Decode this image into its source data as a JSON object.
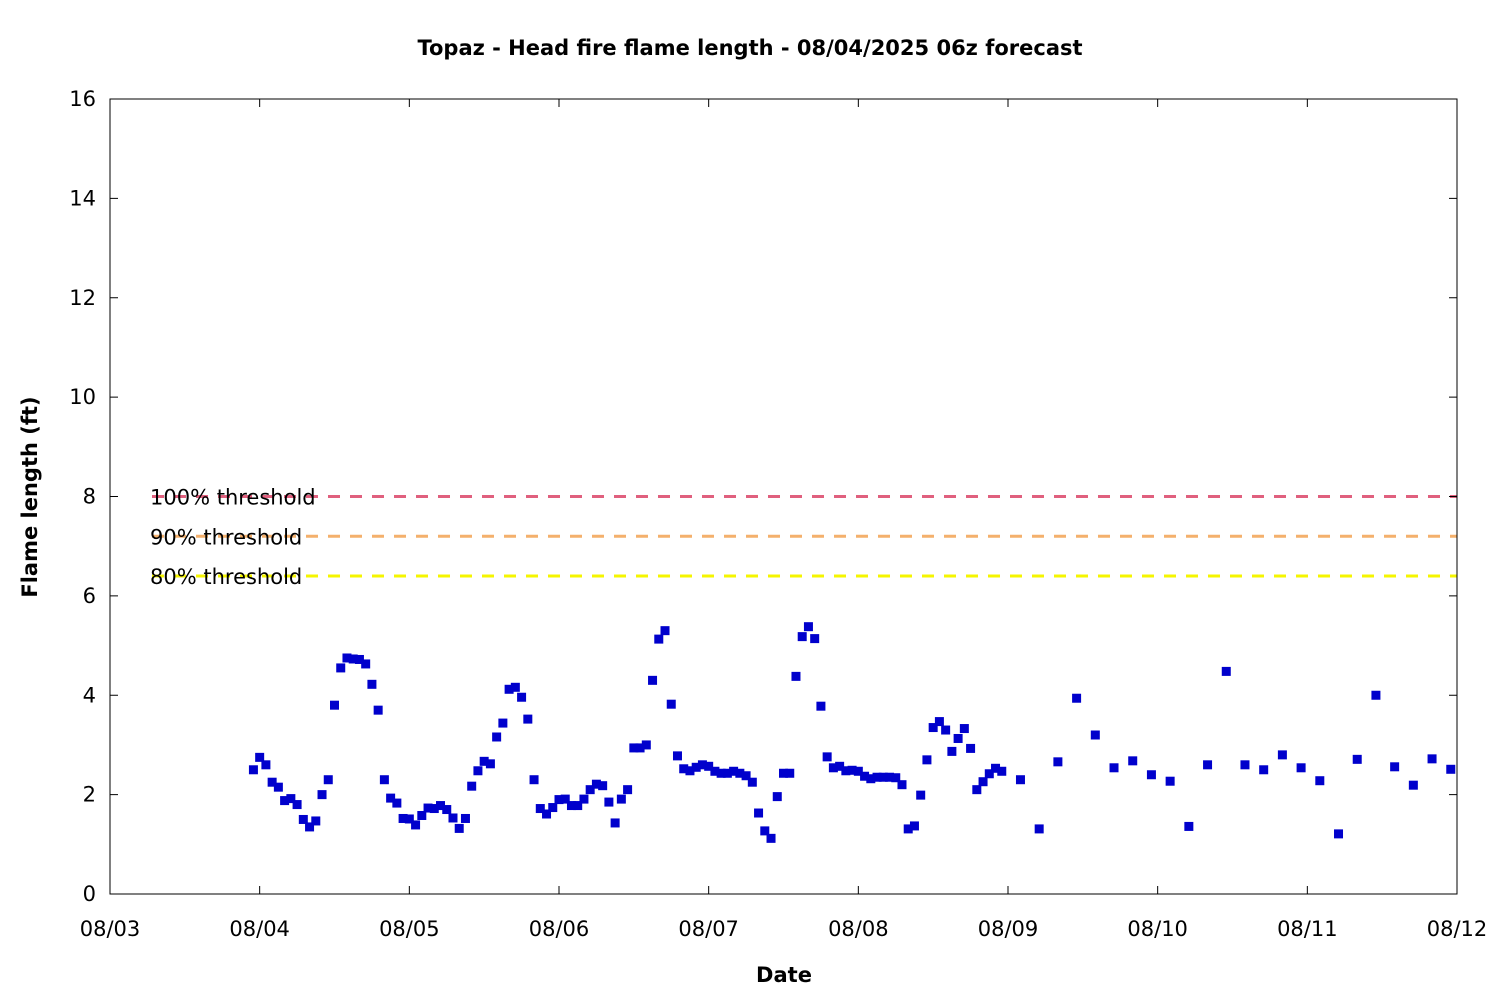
{
  "chart_data": {
    "type": "scatter",
    "title": "Topaz - Head fire flame length - 08/04/2025 06z forecast",
    "xlabel": "Date",
    "ylabel": "Flame length (ft)",
    "xlim": [
      "08/03",
      "08/12"
    ],
    "ylim": [
      0,
      16
    ],
    "yticks": [
      0,
      2,
      4,
      6,
      8,
      10,
      12,
      14,
      16
    ],
    "xticks": [
      "08/03",
      "08/04",
      "08/05",
      "08/06",
      "08/07",
      "08/08",
      "08/09",
      "08/10",
      "08/11",
      "08/12"
    ],
    "grid": false,
    "point_color": "#0000cc",
    "thresholds": [
      {
        "name": "100% threshold",
        "value": 8.0,
        "color": "#e0607e"
      },
      {
        "name": "90% threshold",
        "value": 7.2,
        "color": "#f4b06c"
      },
      {
        "name": "80% threshold",
        "value": 6.4,
        "color": "#f5f500"
      }
    ],
    "series": [
      {
        "x": [
          "08/03 23:00",
          "08/04 00:00",
          "08/04 01:00",
          "08/04 02:00",
          "08/04 03:00",
          "08/04 04:00",
          "08/04 05:00",
          "08/04 06:00",
          "08/04 07:00",
          "08/04 08:00",
          "08/04 09:00",
          "08/04 10:00",
          "08/04 11:00",
          "08/04 12:00",
          "08/04 13:00",
          "08/04 14:00",
          "08/04 15:00",
          "08/04 16:00",
          "08/04 17:00",
          "08/04 18:00",
          "08/04 19:00",
          "08/04 20:00",
          "08/04 21:00",
          "08/04 22:00",
          "08/04 23:00",
          "08/05 00:00",
          "08/05 01:00",
          "08/05 02:00",
          "08/05 03:00",
          "08/05 04:00",
          "08/05 05:00",
          "08/05 06:00",
          "08/05 07:00",
          "08/05 08:00",
          "08/05 09:00",
          "08/05 10:00",
          "08/05 11:00",
          "08/05 12:00",
          "08/05 13:00",
          "08/05 14:00",
          "08/05 15:00",
          "08/05 16:00",
          "08/05 17:00",
          "08/05 18:00",
          "08/05 19:00",
          "08/05 20:00",
          "08/05 21:00",
          "08/05 22:00",
          "08/05 23:00",
          "08/06 00:00",
          "08/06 01:00",
          "08/06 02:00",
          "08/06 03:00",
          "08/06 04:00",
          "08/06 05:00",
          "08/06 06:00",
          "08/06 07:00",
          "08/06 08:00",
          "08/06 09:00",
          "08/06 10:00",
          "08/06 11:00",
          "08/06 12:00",
          "08/06 13:00",
          "08/06 14:00",
          "08/06 15:00",
          "08/06 16:00",
          "08/06 17:00",
          "08/06 18:00",
          "08/06 19:00",
          "08/06 20:00",
          "08/06 21:00",
          "08/06 22:00",
          "08/06 23:00",
          "08/07 00:00",
          "08/07 01:00",
          "08/07 02:00",
          "08/07 03:00",
          "08/07 04:00",
          "08/07 05:00",
          "08/07 06:00",
          "08/07 07:00",
          "08/07 08:00",
          "08/07 09:00",
          "08/07 10:00",
          "08/07 11:00",
          "08/07 12:00",
          "08/07 13:00",
          "08/07 14:00",
          "08/07 15:00",
          "08/07 16:00",
          "08/07 17:00",
          "08/07 18:00",
          "08/07 19:00",
          "08/07 20:00",
          "08/07 21:00",
          "08/07 22:00",
          "08/07 23:00",
          "08/08 00:00",
          "08/08 01:00",
          "08/08 02:00",
          "08/08 03:00",
          "08/08 04:00",
          "08/08 05:00",
          "08/08 06:00",
          "08/08 07:00",
          "08/08 08:00",
          "08/08 09:00",
          "08/08 10:00",
          "08/08 11:00",
          "08/08 12:00",
          "08/08 13:00",
          "08/08 14:00",
          "08/08 15:00",
          "08/08 16:00",
          "08/08 17:00",
          "08/08 18:00",
          "08/08 19:00",
          "08/08 20:00",
          "08/08 21:00",
          "08/08 22:00",
          "08/08 23:00",
          "08/09 02:00",
          "08/09 05:00",
          "08/09 08:00",
          "08/09 11:00",
          "08/09 14:00",
          "08/09 17:00",
          "08/09 20:00",
          "08/09 23:00",
          "08/10 02:00",
          "08/10 05:00",
          "08/10 08:00",
          "08/10 11:00",
          "08/10 14:00",
          "08/10 17:00",
          "08/10 20:00",
          "08/10 23:00",
          "08/11 02:00",
          "08/11 05:00",
          "08/11 08:00",
          "08/11 11:00",
          "08/11 14:00",
          "08/11 17:00",
          "08/11 20:00",
          "08/11 23:00"
        ],
        "y": [
          2.5,
          2.75,
          2.6,
          2.25,
          2.15,
          1.88,
          1.92,
          1.8,
          1.5,
          1.35,
          1.47,
          2.0,
          2.3,
          3.8,
          4.55,
          4.75,
          4.73,
          4.72,
          4.63,
          4.22,
          3.7,
          2.3,
          1.93,
          1.83,
          1.52,
          1.51,
          1.39,
          1.58,
          1.73,
          1.72,
          1.78,
          1.7,
          1.53,
          1.32,
          1.52,
          2.17,
          2.48,
          2.67,
          2.62,
          3.16,
          3.44,
          4.12,
          4.16,
          3.96,
          3.52,
          2.3,
          1.72,
          1.61,
          1.74,
          1.9,
          1.91,
          1.78,
          1.78,
          1.91,
          2.1,
          2.21,
          2.18,
          1.85,
          1.43,
          1.91,
          2.1,
          2.94,
          2.94,
          3.0,
          4.3,
          5.13,
          5.3,
          3.82,
          2.78,
          2.52,
          2.48,
          2.55,
          2.6,
          2.57,
          2.47,
          2.43,
          2.43,
          2.47,
          2.43,
          2.38,
          2.25,
          1.63,
          1.27,
          1.12,
          1.96,
          2.43,
          2.43,
          4.38,
          5.18,
          5.38,
          5.14,
          3.78,
          2.76,
          2.54,
          2.57,
          2.48,
          2.49,
          2.47,
          2.37,
          2.32,
          2.35,
          2.35,
          2.35,
          2.34,
          2.2,
          1.31,
          1.37,
          1.99,
          2.7,
          3.35,
          3.47,
          3.3,
          2.87,
          3.13,
          3.33,
          2.93,
          2.1,
          2.26,
          2.42,
          2.53,
          2.47,
          2.3,
          1.31,
          2.66,
          3.94,
          3.2,
          2.54,
          2.68,
          2.4,
          2.27,
          1.36,
          2.6,
          4.48,
          2.6,
          2.5,
          2.8,
          2.54,
          2.28,
          1.21,
          2.71,
          4.0,
          2.56,
          2.19,
          2.72,
          2.51
        ]
      }
    ]
  }
}
